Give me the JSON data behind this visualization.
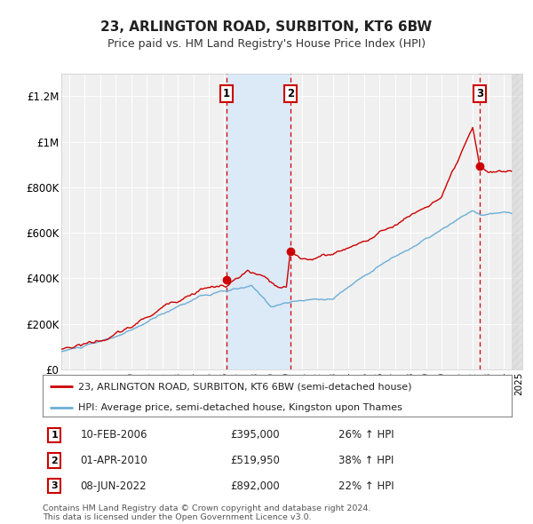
{
  "title": "23, ARLINGTON ROAD, SURBITON, KT6 6BW",
  "subtitle": "Price paid vs. HM Land Registry's House Price Index (HPI)",
  "background_color": "#ffffff",
  "plot_bg_color": "#f0f0f0",
  "grid_color": "#ffffff",
  "xlim_start": 1995.5,
  "xlim_end": 2025.2,
  "ylim_min": 0,
  "ylim_max": 1300000,
  "yticks": [
    0,
    200000,
    400000,
    600000,
    800000,
    1000000,
    1200000
  ],
  "ytick_labels": [
    "£0",
    "£200K",
    "£400K",
    "£600K",
    "£800K",
    "£1M",
    "£1.2M"
  ],
  "transactions": [
    {
      "num": 1,
      "date_year": 2006.12,
      "price": 395000,
      "date_str": "10-FEB-2006",
      "price_str": "£395,000",
      "pct_str": "26% ↑ HPI"
    },
    {
      "num": 2,
      "date_year": 2010.25,
      "price": 519950,
      "date_str": "01-APR-2010",
      "price_str": "£519,950",
      "pct_str": "38% ↑ HPI"
    },
    {
      "num": 3,
      "date_year": 2022.44,
      "price": 892000,
      "date_str": "08-JUN-2022",
      "price_str": "£892,000",
      "pct_str": "22% ↑ HPI"
    }
  ],
  "vline_color": "#cc0000",
  "vband_color": "#dce9f7",
  "hpi_line_color": "#6baed6",
  "price_line_color": "#cc0000",
  "legend_label_price": "23, ARLINGTON ROAD, SURBITON, KT6 6BW (semi-detached house)",
  "legend_label_hpi": "HPI: Average price, semi-detached house, Kingston upon Thames",
  "footnote": "Contains HM Land Registry data © Crown copyright and database right 2024.\nThis data is licensed under the Open Government Licence v3.0."
}
